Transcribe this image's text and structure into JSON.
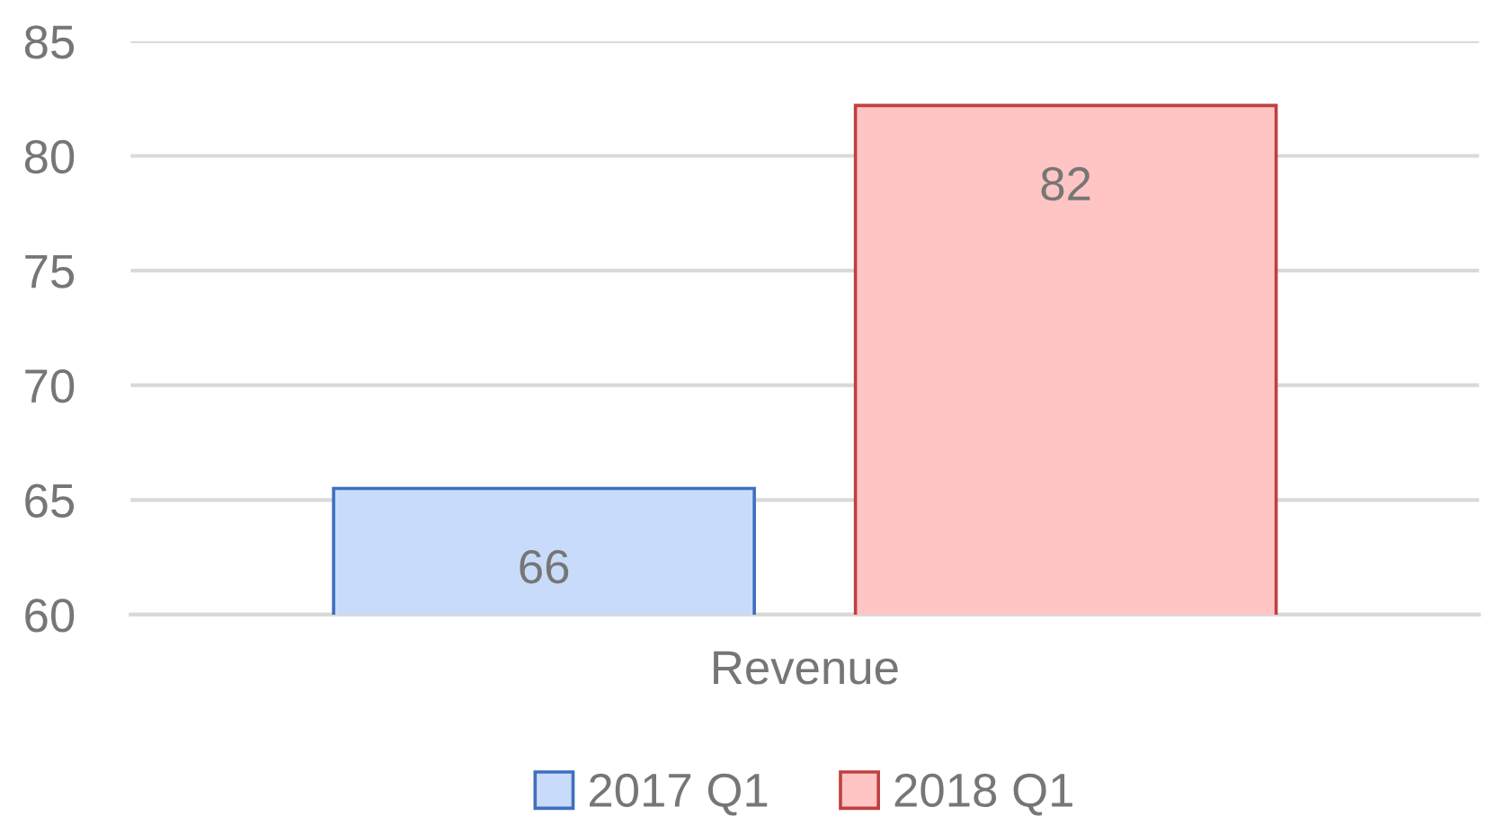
{
  "chart_data": {
    "type": "bar",
    "categories": [
      "Revenue"
    ],
    "series": [
      {
        "name": "2017 Q1",
        "color": "#c9dbfa",
        "values": [
          65.5
        ],
        "value_labels": [
          "66"
        ]
      },
      {
        "name": "2018 Q1",
        "color": "#ffc4c4",
        "values": [
          82.2
        ],
        "value_labels": [
          "82"
        ]
      }
    ],
    "ylim": [
      60,
      85
    ],
    "yticks": [
      60,
      65,
      70,
      75,
      80,
      85
    ],
    "grid": "y",
    "legend": "bottom"
  }
}
